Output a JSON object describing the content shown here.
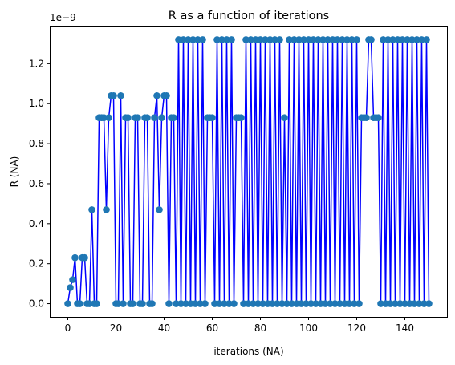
{
  "chart_data": {
    "type": "line",
    "title": "R as a function of iterations",
    "xlabel": "iterations (NA)",
    "ylabel": "R (NA)",
    "y_offset_label": "1e−9",
    "x_ticks": [
      "0",
      "20",
      "40",
      "60",
      "80",
      "100",
      "120",
      "140"
    ],
    "y_ticks": [
      "0.0",
      "0.2",
      "0.4",
      "0.6",
      "0.8",
      "1.0",
      "1.2"
    ],
    "xlim": [
      -7.5,
      157.5
    ],
    "ylim": [
      -0.066,
      1.386
    ],
    "grid": false,
    "legend": "none",
    "line_color": "#0000ff",
    "marker_color": "#1f77b4",
    "series": [
      {
        "x": [
          0,
          1,
          2,
          3,
          4,
          5,
          6,
          7,
          8,
          9,
          10,
          11,
          12,
          13,
          14,
          15,
          16,
          17,
          18,
          19,
          20,
          21,
          22,
          23,
          24,
          25,
          26,
          27,
          28,
          29,
          30,
          31,
          32,
          33,
          34,
          35,
          36,
          37,
          38,
          39,
          40,
          41,
          42,
          43,
          44,
          45,
          46,
          47,
          48,
          49,
          50,
          51,
          52,
          53,
          54,
          55,
          56,
          57,
          58,
          59,
          60,
          61,
          62,
          63,
          64,
          65,
          66,
          67,
          68,
          69,
          70,
          71,
          72,
          73,
          74,
          75,
          76,
          77,
          78,
          79,
          80,
          81,
          82,
          83,
          84,
          85,
          86,
          87,
          88,
          89,
          90,
          91,
          92,
          93,
          94,
          95,
          96,
          97,
          98,
          99,
          100,
          101,
          102,
          103,
          104,
          105,
          106,
          107,
          108,
          109,
          110,
          111,
          112,
          113,
          114,
          115,
          116,
          117,
          118,
          119,
          120,
          121,
          122,
          123,
          124,
          125,
          126,
          127,
          128,
          129,
          130,
          131,
          132,
          133,
          134,
          135,
          136,
          137,
          138,
          139,
          140,
          141,
          142,
          143,
          144,
          145,
          146,
          147,
          148,
          149,
          150
        ],
        "y": [
          0,
          0.08,
          0.12,
          0.23,
          0,
          0,
          0.23,
          0.23,
          0,
          0,
          0.47,
          0,
          0,
          0.93,
          0.93,
          0.93,
          0.47,
          0.93,
          1.04,
          1.04,
          0,
          0,
          1.04,
          0,
          0.93,
          0.93,
          0,
          0,
          0.93,
          0.93,
          0,
          0,
          0.93,
          0.93,
          0,
          0,
          0.93,
          1.04,
          0.47,
          0.93,
          1.04,
          1.04,
          0,
          0.93,
          0.93,
          0,
          1.32,
          0,
          1.32,
          0,
          1.32,
          0,
          1.32,
          0,
          1.32,
          0,
          1.32,
          0,
          0.93,
          0.93,
          0.93,
          0,
          1.32,
          0,
          1.32,
          0,
          1.32,
          0,
          1.32,
          0,
          0.93,
          0.93,
          0.93,
          0,
          1.32,
          0,
          1.32,
          0,
          1.32,
          0,
          1.32,
          0,
          1.32,
          0,
          1.32,
          0,
          1.32,
          0,
          1.32,
          0,
          0.93,
          0,
          1.32,
          0,
          1.32,
          0,
          1.32,
          0,
          1.32,
          0,
          1.32,
          0,
          1.32,
          0,
          1.32,
          0,
          1.32,
          0,
          1.32,
          0,
          1.32,
          0,
          1.32,
          0,
          1.32,
          0,
          1.32,
          0,
          1.32,
          0,
          1.32,
          0,
          0.93,
          0.93,
          0.93,
          1.32,
          1.32,
          0.93,
          0.93,
          0.93,
          0,
          1.32,
          0,
          1.32,
          0,
          1.32,
          0,
          1.32,
          0,
          1.32,
          0,
          1.32,
          0,
          1.32,
          0,
          1.32,
          0,
          1.32,
          0,
          1.32,
          0
        ]
      }
    ]
  }
}
